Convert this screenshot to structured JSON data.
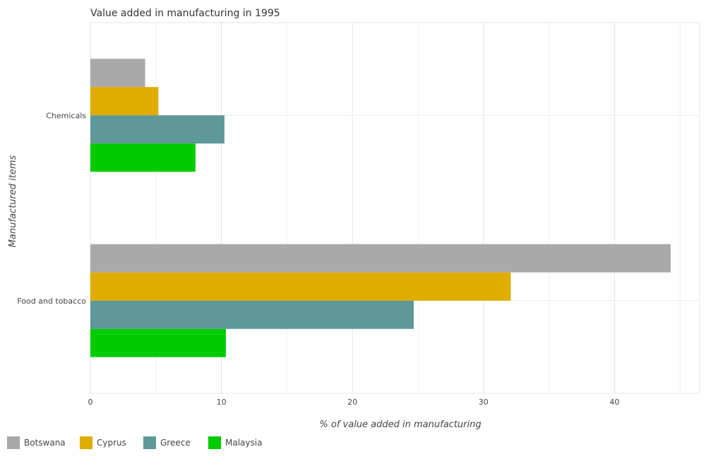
{
  "chart_data": {
    "type": "bar",
    "orientation": "horizontal",
    "title": "Value added in manufacturing in 1995",
    "xlabel": "% of value added in manufacturing",
    "ylabel": "Manufactured items",
    "categories": [
      "Chemicals",
      "Food and tobacco"
    ],
    "series": [
      {
        "name": "Botswana",
        "color": "#a9a9a9",
        "values": [
          4.18,
          44.28
        ]
      },
      {
        "name": "Cyprus",
        "color": "#e0ac00",
        "values": [
          5.19,
          32.08
        ]
      },
      {
        "name": "Greece",
        "color": "#5e9898",
        "values": [
          10.23,
          24.68
        ]
      },
      {
        "name": "Malaysia",
        "color": "#00cc00",
        "values": [
          8.02,
          10.34
        ]
      }
    ],
    "xlim": [
      0,
      46.5
    ],
    "xticks": [
      0,
      10,
      20,
      30,
      40
    ],
    "xtick_labels": [
      "0",
      "10",
      "20",
      "30",
      "40"
    ],
    "grid": true,
    "legend_position": "bottom-left"
  }
}
